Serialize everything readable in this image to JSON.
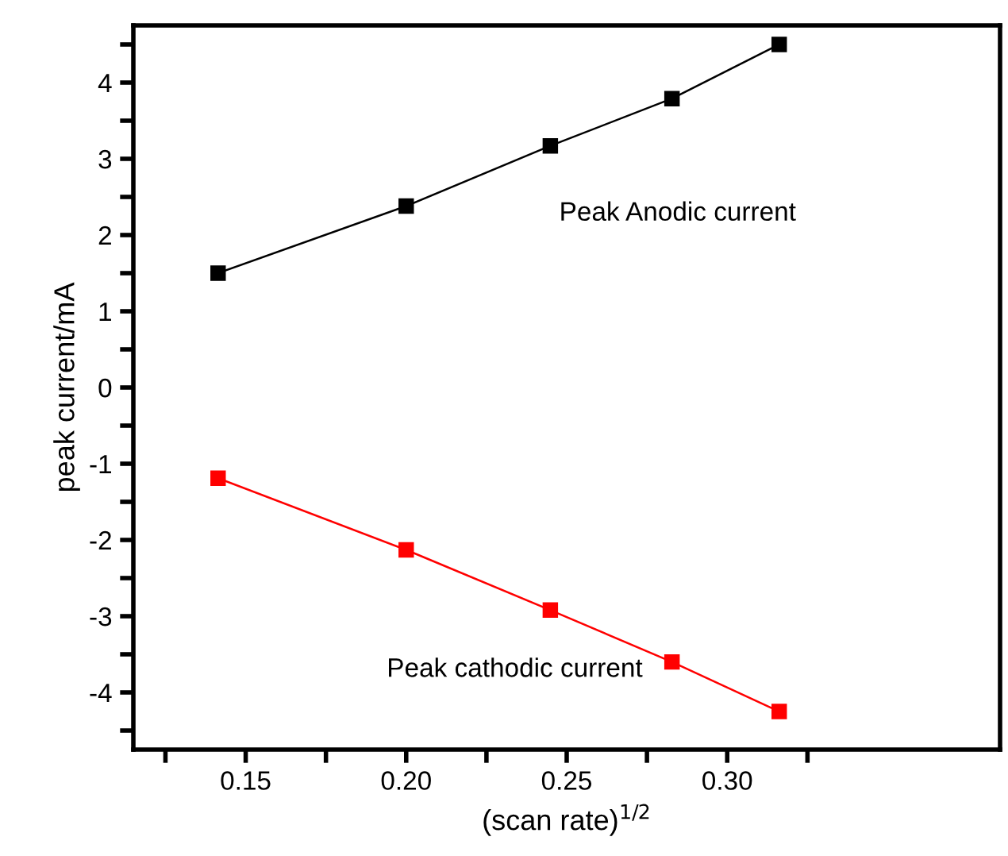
{
  "chart_data": {
    "type": "line",
    "xlabel": "(scan rate)$^{1/2}$",
    "ylabel": "peak current/mA",
    "x": [
      0.1414,
      0.2,
      0.2449,
      0.2828,
      0.3162
    ],
    "series": [
      {
        "color": "#000000",
        "values": [
          1.5,
          2.38,
          3.17,
          3.79,
          4.5
        ]
      },
      {
        "color": "#ff0000",
        "values": [
          -1.19,
          -2.13,
          -2.92,
          -3.6,
          -4.25
        ]
      }
    ],
    "annotations": [
      "Peak Anodic current",
      "Peak cathodic current"
    ],
    "marker": "square",
    "line_style": "solid",
    "grid": false,
    "legend": false,
    "xlim": [
      0.115,
      0.385
    ],
    "ylim": [
      -4.75,
      4.75
    ],
    "xticks": [
      {
        "value": 0.125,
        "label": null
      },
      {
        "value": 0.15,
        "label": "0.15"
      },
      {
        "value": 0.175,
        "label": null
      },
      {
        "value": 0.2,
        "label": "0.20"
      },
      {
        "value": 0.225,
        "label": null
      },
      {
        "value": 0.25,
        "label": "0.25"
      },
      {
        "value": 0.275,
        "label": null
      },
      {
        "value": 0.3,
        "label": "0.30"
      },
      {
        "value": 0.325,
        "label": null
      }
    ],
    "yticks": [
      {
        "value": -4.5,
        "label": null
      },
      -4,
      {
        "value": -3.5,
        "label": null
      },
      -3,
      {
        "value": -2.5,
        "label": null
      },
      -2,
      {
        "value": -1.5,
        "label": null
      },
      -1,
      {
        "value": -0.5,
        "label": null
      },
      0,
      {
        "value": 0.5,
        "label": null
      },
      1,
      {
        "value": 1.5,
        "label": null
      },
      2,
      {
        "value": 2.5,
        "label": null
      },
      3,
      {
        "value": 3.5,
        "label": null
      },
      4,
      {
        "value": 4.5,
        "label": null
      }
    ]
  }
}
